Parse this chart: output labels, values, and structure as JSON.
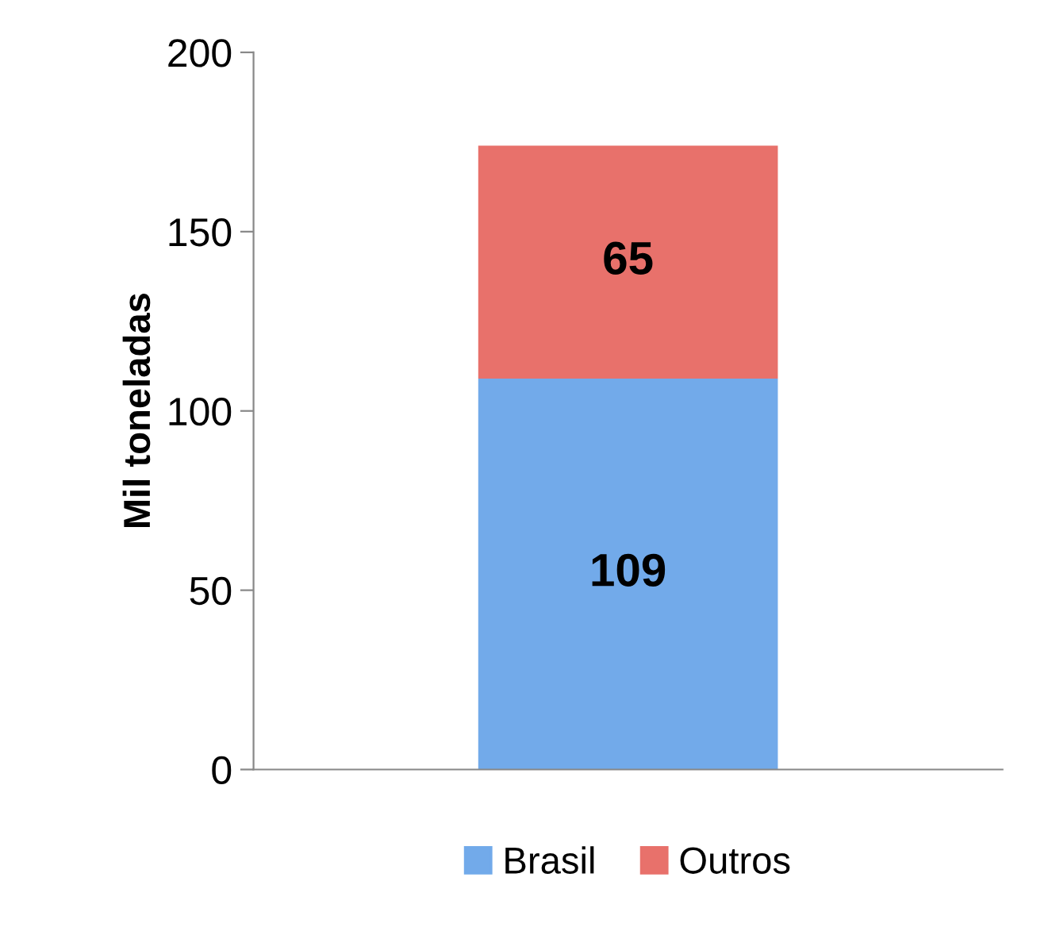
{
  "chart_data": {
    "type": "bar",
    "stacked": true,
    "ylabel": "Mil toneladas",
    "categories": [
      null
    ],
    "series": [
      {
        "name": "Brasil",
        "color": "#72aaea",
        "values": [
          109
        ]
      },
      {
        "name": "Outros",
        "color": "#e8716b",
        "values": [
          65
        ]
      }
    ],
    "ylim": [
      0,
      200
    ],
    "yticks": [
      0,
      50,
      100,
      150,
      200
    ],
    "grid": false,
    "legend": "bottom",
    "data_labels": true
  }
}
